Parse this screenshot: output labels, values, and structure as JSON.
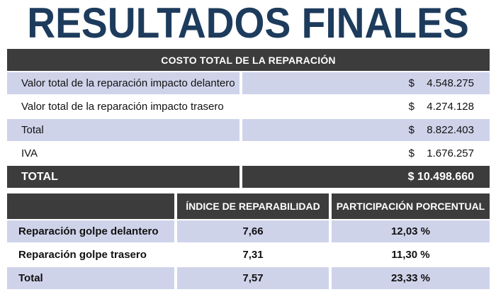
{
  "title": "RESULTADOS FINALES",
  "cost_table": {
    "header": "COSTO TOTAL DE LA REPARACIÓN",
    "rows": [
      {
        "label": "Valor total de la reparación impacto delantero",
        "currency": "$",
        "value": "4.548.275"
      },
      {
        "label": "Valor total de la reparación impacto trasero",
        "currency": "$",
        "value": "4.274.128"
      },
      {
        "label": "Total",
        "currency": "$",
        "value": "8.822.403"
      },
      {
        "label": "IVA",
        "currency": "$",
        "value": "1.676.257"
      }
    ],
    "total": {
      "label": "TOTAL",
      "value": "$ 10.498.660"
    }
  },
  "index_table": {
    "headers": [
      "",
      "ÍNDICE DE REPARABILIDAD",
      "PARTICIPACIÓN PORCENTUAL"
    ],
    "rows": [
      {
        "label": "Reparación golpe delantero",
        "index": "7,66",
        "percent": "12,03 %"
      },
      {
        "label": "Reparación golpe trasero",
        "index": "7,31",
        "percent": "11,30 %"
      },
      {
        "label": "Total",
        "index": "7,57",
        "percent": "23,33 %"
      }
    ]
  },
  "colors": {
    "title": "#1d3b5c",
    "header_bg": "#3c3c3c",
    "row_shade": "#cfd3ea"
  }
}
